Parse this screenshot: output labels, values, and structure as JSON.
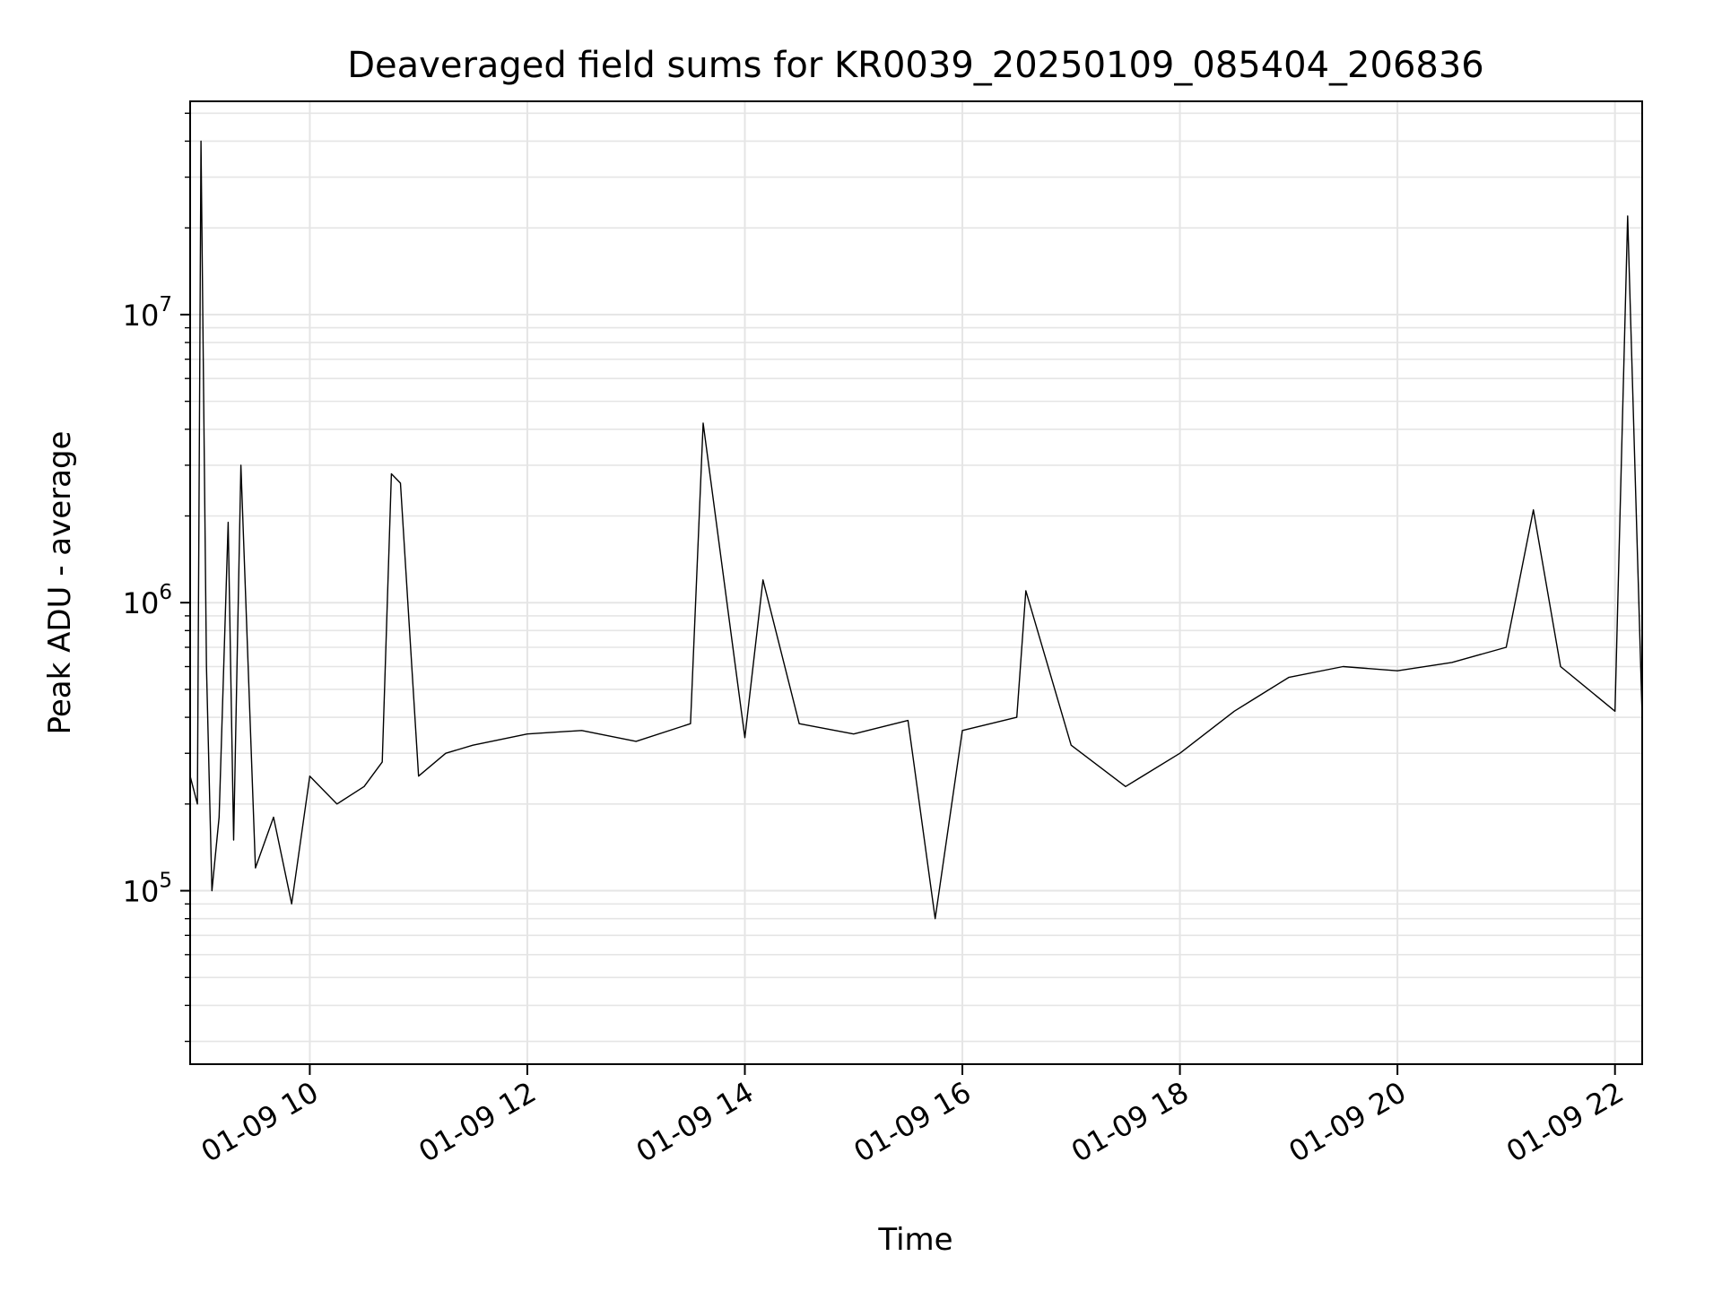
{
  "chart_data": {
    "type": "line",
    "title": "Deaveraged field sums for KR0039_20250109_085404_206836",
    "xlabel": "Time",
    "ylabel": "Peak ADU - average",
    "y_scale": "log",
    "xlim": [
      "01-09 08:54",
      "01-09 22:15"
    ],
    "ylim": [
      25000,
      55000000
    ],
    "grid": true,
    "line_color": "#000000",
    "grid_color": "#e5e5e5",
    "x_ticks": [
      {
        "value": "01-09 10:00",
        "label": "01-09 10"
      },
      {
        "value": "01-09 12:00",
        "label": "01-09 12"
      },
      {
        "value": "01-09 14:00",
        "label": "01-09 14"
      },
      {
        "value": "01-09 16:00",
        "label": "01-09 16"
      },
      {
        "value": "01-09 18:00",
        "label": "01-09 18"
      },
      {
        "value": "01-09 20:00",
        "label": "01-09 20"
      },
      {
        "value": "01-09 22:00",
        "label": "01-09 22"
      }
    ],
    "y_ticks": [
      {
        "value": 100000,
        "base": "10",
        "exp": "5"
      },
      {
        "value": 1000000,
        "base": "10",
        "exp": "6"
      },
      {
        "value": 10000000,
        "base": "10",
        "exp": "7"
      }
    ],
    "series": [
      {
        "x": [
          "01-09 08:54",
          "01-09 08:58",
          "01-09 09:00",
          "01-09 09:03",
          "01-09 09:06",
          "01-09 09:10",
          "01-09 09:15",
          "01-09 09:18",
          "01-09 09:22",
          "01-09 09:30",
          "01-09 09:40",
          "01-09 09:50",
          "01-09 10:00",
          "01-09 10:15",
          "01-09 10:30",
          "01-09 10:40",
          "01-09 10:45",
          "01-09 10:50",
          "01-09 11:00",
          "01-09 11:15",
          "01-09 11:30",
          "01-09 12:00",
          "01-09 12:30",
          "01-09 13:00",
          "01-09 13:30",
          "01-09 13:37",
          "01-09 14:00",
          "01-09 14:10",
          "01-09 14:30",
          "01-09 15:00",
          "01-09 15:30",
          "01-09 15:45",
          "01-09 16:00",
          "01-09 16:30",
          "01-09 16:35",
          "01-09 17:00",
          "01-09 17:30",
          "01-09 18:00",
          "01-09 18:30",
          "01-09 19:00",
          "01-09 19:30",
          "01-09 20:00",
          "01-09 20:30",
          "01-09 21:00",
          "01-09 21:15",
          "01-09 21:30",
          "01-09 22:00",
          "01-09 22:07",
          "01-09 22:15"
        ],
        "y": [
          250000,
          200000,
          40000000,
          600000,
          100000,
          180000,
          1900000,
          150000,
          3000000,
          120000,
          180000,
          90000,
          250000,
          200000,
          230000,
          280000,
          2800000,
          2600000,
          250000,
          300000,
          320000,
          350000,
          360000,
          330000,
          380000,
          4200000,
          340000,
          1200000,
          380000,
          350000,
          390000,
          80000,
          360000,
          400000,
          1100000,
          320000,
          230000,
          300000,
          420000,
          550000,
          600000,
          580000,
          620000,
          700000,
          2100000,
          600000,
          420000,
          22000000,
          400000
        ]
      }
    ]
  }
}
